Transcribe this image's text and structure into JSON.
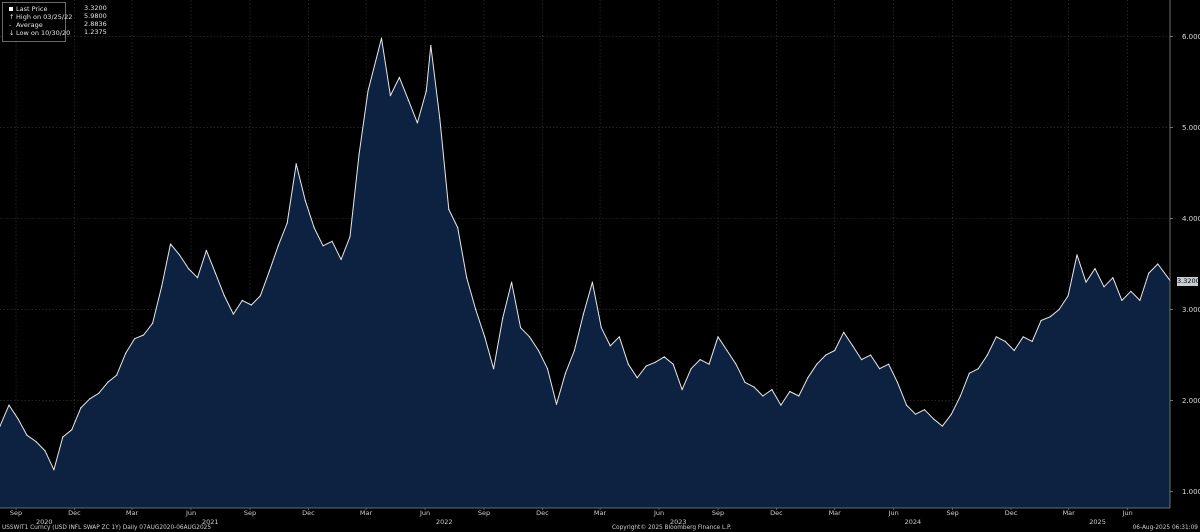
{
  "legend": {
    "rows": [
      {
        "label": "Last Price",
        "value": "3.3200",
        "symbol": "square"
      },
      {
        "label": "High on 03/25/22",
        "value": "5.9800",
        "symbol": "up"
      },
      {
        "label": "Average",
        "value": "2.8836",
        "symbol": "dash"
      },
      {
        "label": "Low on 10/30/20",
        "value": "1.2375",
        "symbol": "down"
      }
    ]
  },
  "last_price_tag": "3.3200",
  "footer": {
    "left": "USSWIT1 Curncy (USD INFL SWAP ZC 1Y)  Daily 07AUG2020-06AUG2025",
    "center": "Copyright© 2025 Bloomberg Finance L.P.",
    "right": "06-Aug-2025 06:31:09"
  },
  "colors": {
    "background": "#000000",
    "area_fill": "#0c2240",
    "line": "#e8e8e8",
    "grid": "#3a3a3a"
  },
  "chart_data": {
    "type": "area",
    "title": "",
    "xlabel": "",
    "ylabel": "",
    "ylim": [
      0.82,
      6.4
    ],
    "xlim": [
      "2020-08-07",
      "2025-08-06"
    ],
    "y_ticks": [
      "1.0000",
      "2.0000",
      "3.0000",
      "4.0000",
      "5.0000",
      "6.0000"
    ],
    "x_ticks": [
      {
        "label": "Sep",
        "date": "2020-09-01"
      },
      {
        "label": "Dec",
        "date": "2020-12-01"
      },
      {
        "label": "Mar",
        "date": "2021-03-01"
      },
      {
        "label": "Jun",
        "date": "2021-06-01"
      },
      {
        "label": "Sep",
        "date": "2021-09-01"
      },
      {
        "label": "Dec",
        "date": "2021-12-01"
      },
      {
        "label": "Mar",
        "date": "2022-03-01"
      },
      {
        "label": "Jun",
        "date": "2022-06-01"
      },
      {
        "label": "Sep",
        "date": "2022-09-01"
      },
      {
        "label": "Dec",
        "date": "2022-12-01"
      },
      {
        "label": "Mar",
        "date": "2023-03-01"
      },
      {
        "label": "Jun",
        "date": "2023-06-01"
      },
      {
        "label": "Sep",
        "date": "2023-09-01"
      },
      {
        "label": "Dec",
        "date": "2023-12-01"
      },
      {
        "label": "Mar",
        "date": "2024-03-01"
      },
      {
        "label": "Jun",
        "date": "2024-06-01"
      },
      {
        "label": "Sep",
        "date": "2024-09-01"
      },
      {
        "label": "Dec",
        "date": "2024-12-01"
      },
      {
        "label": "Mar",
        "date": "2025-03-01"
      },
      {
        "label": "Jun",
        "date": "2025-06-01"
      }
    ],
    "year_labels": [
      {
        "label": "2020",
        "date": "2020-10-15"
      },
      {
        "label": "2021",
        "date": "2021-07-01"
      },
      {
        "label": "2022",
        "date": "2022-07-01"
      },
      {
        "label": "2023",
        "date": "2023-07-01"
      },
      {
        "label": "2024",
        "date": "2024-07-01"
      },
      {
        "label": "2025",
        "date": "2025-04-15"
      }
    ],
    "series": [
      {
        "points": [
          [
            "2020-08-07",
            1.72
          ],
          [
            "2020-08-21",
            1.95
          ],
          [
            "2020-09-04",
            1.8
          ],
          [
            "2020-09-18",
            1.62
          ],
          [
            "2020-10-02",
            1.55
          ],
          [
            "2020-10-16",
            1.45
          ],
          [
            "2020-10-30",
            1.24
          ],
          [
            "2020-11-13",
            1.6
          ],
          [
            "2020-11-27",
            1.68
          ],
          [
            "2020-12-11",
            1.92
          ],
          [
            "2020-12-25",
            2.02
          ],
          [
            "2021-01-08",
            2.08
          ],
          [
            "2021-01-22",
            2.2
          ],
          [
            "2021-02-05",
            2.28
          ],
          [
            "2021-02-19",
            2.52
          ],
          [
            "2021-03-05",
            2.68
          ],
          [
            "2021-03-19",
            2.72
          ],
          [
            "2021-04-02",
            2.85
          ],
          [
            "2021-04-16",
            3.25
          ],
          [
            "2021-04-30",
            3.72
          ],
          [
            "2021-05-14",
            3.6
          ],
          [
            "2021-05-28",
            3.45
          ],
          [
            "2021-06-11",
            3.35
          ],
          [
            "2021-06-25",
            3.65
          ],
          [
            "2021-07-09",
            3.4
          ],
          [
            "2021-07-23",
            3.15
          ],
          [
            "2021-08-06",
            2.95
          ],
          [
            "2021-08-20",
            3.1
          ],
          [
            "2021-09-03",
            3.05
          ],
          [
            "2021-09-17",
            3.15
          ],
          [
            "2021-10-01",
            3.42
          ],
          [
            "2021-10-15",
            3.7
          ],
          [
            "2021-10-29",
            3.95
          ],
          [
            "2021-11-12",
            4.6
          ],
          [
            "2021-11-26",
            4.2
          ],
          [
            "2021-12-10",
            3.9
          ],
          [
            "2021-12-24",
            3.7
          ],
          [
            "2022-01-07",
            3.75
          ],
          [
            "2022-01-21",
            3.55
          ],
          [
            "2022-02-04",
            3.8
          ],
          [
            "2022-02-18",
            4.7
          ],
          [
            "2022-03-04",
            5.4
          ],
          [
            "2022-03-25",
            5.98
          ],
          [
            "2022-04-08",
            5.35
          ],
          [
            "2022-04-22",
            5.55
          ],
          [
            "2022-05-06",
            5.3
          ],
          [
            "2022-05-20",
            5.05
          ],
          [
            "2022-06-03",
            5.4
          ],
          [
            "2022-06-10",
            5.9
          ],
          [
            "2022-06-24",
            5.1
          ],
          [
            "2022-07-08",
            4.1
          ],
          [
            "2022-07-22",
            3.9
          ],
          [
            "2022-08-05",
            3.35
          ],
          [
            "2022-08-19",
            3.0
          ],
          [
            "2022-09-02",
            2.7
          ],
          [
            "2022-09-16",
            2.35
          ],
          [
            "2022-09-30",
            2.9
          ],
          [
            "2022-10-14",
            3.3
          ],
          [
            "2022-10-28",
            2.8
          ],
          [
            "2022-11-11",
            2.7
          ],
          [
            "2022-11-25",
            2.55
          ],
          [
            "2022-12-09",
            2.35
          ],
          [
            "2022-12-23",
            1.96
          ],
          [
            "2023-01-06",
            2.3
          ],
          [
            "2023-01-20",
            2.55
          ],
          [
            "2023-02-03",
            2.95
          ],
          [
            "2023-02-17",
            3.3
          ],
          [
            "2023-03-03",
            2.8
          ],
          [
            "2023-03-17",
            2.6
          ],
          [
            "2023-03-31",
            2.7
          ],
          [
            "2023-04-14",
            2.4
          ],
          [
            "2023-04-28",
            2.25
          ],
          [
            "2023-05-12",
            2.38
          ],
          [
            "2023-05-26",
            2.42
          ],
          [
            "2023-06-09",
            2.48
          ],
          [
            "2023-06-23",
            2.4
          ],
          [
            "2023-07-07",
            2.12
          ],
          [
            "2023-07-21",
            2.35
          ],
          [
            "2023-08-04",
            2.45
          ],
          [
            "2023-08-18",
            2.4
          ],
          [
            "2023-09-01",
            2.7
          ],
          [
            "2023-09-15",
            2.55
          ],
          [
            "2023-09-29",
            2.4
          ],
          [
            "2023-10-13",
            2.2
          ],
          [
            "2023-10-27",
            2.15
          ],
          [
            "2023-11-10",
            2.05
          ],
          [
            "2023-11-24",
            2.12
          ],
          [
            "2023-12-08",
            1.95
          ],
          [
            "2023-12-22",
            2.1
          ],
          [
            "2024-01-05",
            2.05
          ],
          [
            "2024-01-19",
            2.25
          ],
          [
            "2024-02-02",
            2.4
          ],
          [
            "2024-02-16",
            2.5
          ],
          [
            "2024-03-01",
            2.55
          ],
          [
            "2024-03-15",
            2.75
          ],
          [
            "2024-03-29",
            2.6
          ],
          [
            "2024-04-12",
            2.45
          ],
          [
            "2024-04-26",
            2.5
          ],
          [
            "2024-05-10",
            2.35
          ],
          [
            "2024-05-24",
            2.4
          ],
          [
            "2024-06-07",
            2.2
          ],
          [
            "2024-06-21",
            1.95
          ],
          [
            "2024-07-05",
            1.85
          ],
          [
            "2024-07-19",
            1.9
          ],
          [
            "2024-08-02",
            1.8
          ],
          [
            "2024-08-16",
            1.72
          ],
          [
            "2024-08-30",
            1.85
          ],
          [
            "2024-09-13",
            2.05
          ],
          [
            "2024-09-27",
            2.3
          ],
          [
            "2024-10-11",
            2.35
          ],
          [
            "2024-10-25",
            2.5
          ],
          [
            "2024-11-08",
            2.7
          ],
          [
            "2024-11-22",
            2.65
          ],
          [
            "2024-12-06",
            2.55
          ],
          [
            "2024-12-20",
            2.7
          ],
          [
            "2025-01-03",
            2.65
          ],
          [
            "2025-01-17",
            2.88
          ],
          [
            "2025-01-31",
            2.92
          ],
          [
            "2025-02-14",
            3.0
          ],
          [
            "2025-02-28",
            3.15
          ],
          [
            "2025-03-14",
            3.6
          ],
          [
            "2025-03-28",
            3.3
          ],
          [
            "2025-04-11",
            3.45
          ],
          [
            "2025-04-25",
            3.25
          ],
          [
            "2025-05-09",
            3.35
          ],
          [
            "2025-05-23",
            3.1
          ],
          [
            "2025-06-06",
            3.2
          ],
          [
            "2025-06-20",
            3.1
          ],
          [
            "2025-07-04",
            3.4
          ],
          [
            "2025-07-18",
            3.5
          ],
          [
            "2025-08-06",
            3.32
          ]
        ]
      }
    ]
  }
}
